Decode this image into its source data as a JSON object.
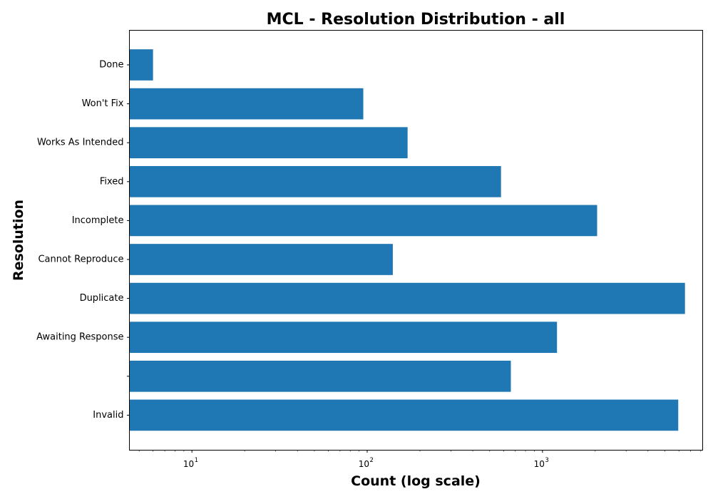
{
  "chart_data": {
    "type": "bar",
    "orientation": "horizontal",
    "title": "MCL - Resolution Distribution - all",
    "xlabel": "Count (log scale)",
    "ylabel": "Resolution",
    "x_scale": "log",
    "xlim": [
      4.4,
      8200
    ],
    "categories": [
      "Done",
      "Won't Fix",
      "Works As Intended",
      "Fixed",
      "Incomplete",
      "Cannot Reproduce",
      "Duplicate",
      "Awaiting Response",
      "",
      "Invalid"
    ],
    "values": [
      6,
      95,
      170,
      580,
      2050,
      140,
      6500,
      1210,
      660,
      5950
    ],
    "x_ticks": [
      {
        "base": "10",
        "exp": "1",
        "value": 10
      },
      {
        "base": "10",
        "exp": "2",
        "value": 100
      },
      {
        "base": "10",
        "exp": "3",
        "value": 1000
      }
    ],
    "color": "#1f77b4",
    "grid": false,
    "legend": "none"
  }
}
